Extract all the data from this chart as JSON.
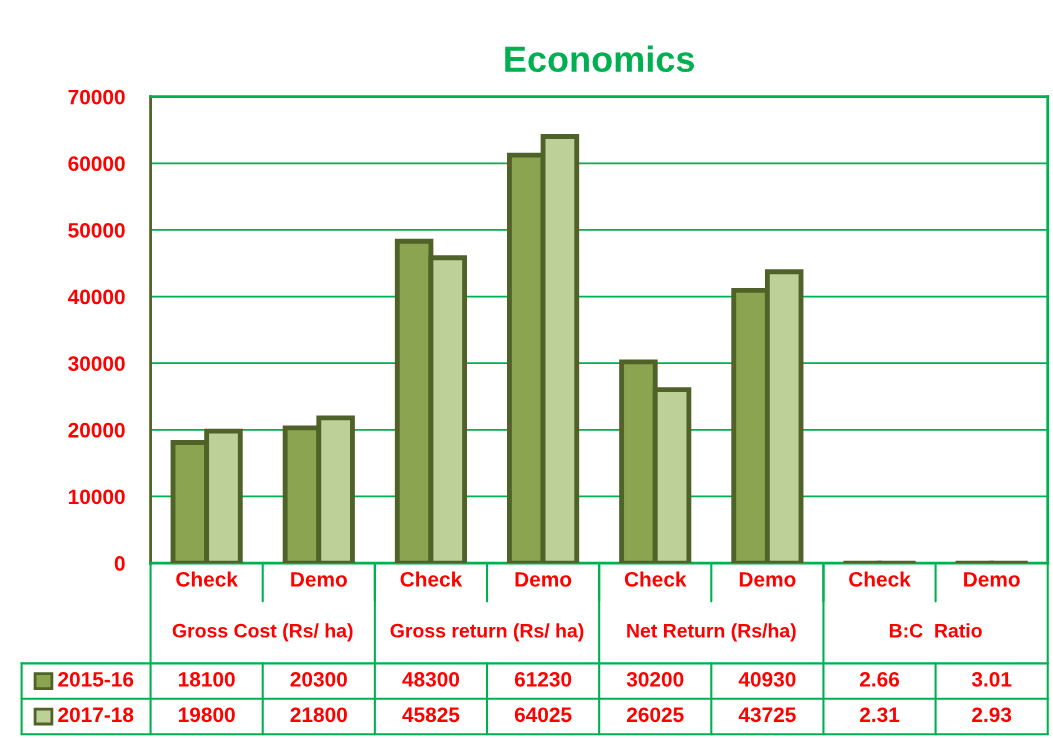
{
  "chart_data": {
    "type": "bar",
    "title": "Economics",
    "categories": [
      "Check",
      "Demo",
      "Check",
      "Demo",
      "Check",
      "Demo",
      "Check",
      "Demo"
    ],
    "annotations": [
      "Gross Cost (Rs/ ha)",
      "Gross return (Rs/ ha)",
      "Net Return (Rs/ha)",
      "B:C  Ratio"
    ],
    "series": [
      {
        "name": "2015-16",
        "color": "#8aa44f",
        "values": [
          18100,
          20300,
          48300,
          61230,
          30200,
          40930,
          2.66,
          3.01
        ]
      },
      {
        "name": "2017-18",
        "color": "#bcd098",
        "values": [
          19800,
          21800,
          45825,
          64025,
          26025,
          43725,
          2.31,
          2.93
        ]
      }
    ],
    "ylim": [
      0,
      70000
    ],
    "yticks": [
      0,
      10000,
      20000,
      30000,
      40000,
      50000,
      60000,
      70000
    ],
    "grid": "y",
    "data_labels": true,
    "legend": "bottom"
  }
}
